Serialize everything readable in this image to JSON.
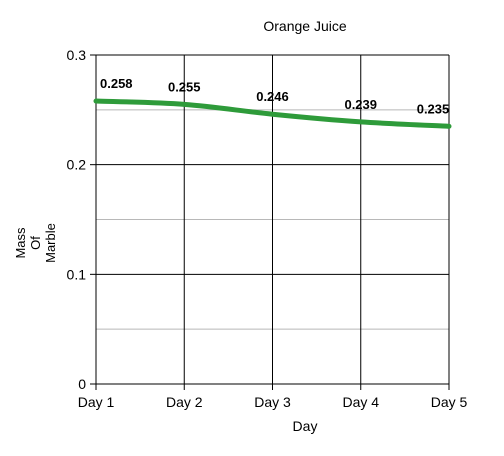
{
  "chart_data": {
    "type": "line",
    "title": "Orange Juice",
    "xlabel": "Day",
    "ylabel_lines": [
      "Mass",
      "Of",
      "Marble"
    ],
    "categories": [
      "Day 1",
      "Day 2",
      "Day 3",
      "Day 4",
      "Day 5"
    ],
    "series": [
      {
        "values": [
          0.258,
          0.255,
          0.246,
          0.239,
          0.235
        ],
        "color": "#2e9b3a"
      }
    ],
    "data_labels": [
      "0.258",
      "0.255",
      "0.246",
      "0.239",
      "0.235"
    ],
    "ylim": [
      0,
      0.3
    ],
    "yticks": [
      0,
      0.1,
      0.2,
      0.3
    ],
    "ytick_labels": [
      "0",
      "0.1",
      "0.2",
      "0.3"
    ],
    "minor_gridlines": [
      0.05,
      0.15,
      0.25
    ],
    "grid": true
  }
}
